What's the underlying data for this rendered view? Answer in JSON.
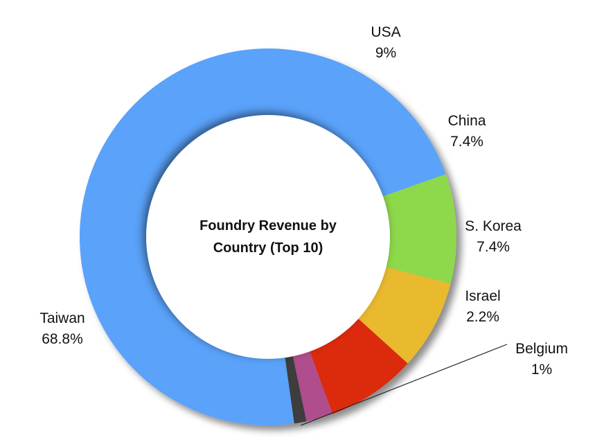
{
  "chart_data": {
    "type": "pie",
    "variant": "donut",
    "title_line1": "Foundry Revenue by",
    "title_line2": "Country (Top 10)",
    "series": [
      {
        "name": "Taiwan",
        "value": 68.8,
        "value_label": "68.8%",
        "color": "#5aa2fa"
      },
      {
        "name": "USA",
        "value": 9,
        "value_label": "9%",
        "color": "#8ed84c"
      },
      {
        "name": "China",
        "value": 7.4,
        "value_label": "7.4%",
        "color": "#e9b92f"
      },
      {
        "name": "S. Korea",
        "value": 7.4,
        "value_label": "7.4%",
        "color": "#dc2b0b"
      },
      {
        "name": "Israel",
        "value": 2.2,
        "value_label": "2.2%",
        "color": "#b04d8d"
      },
      {
        "name": "Belgium",
        "value": 1,
        "value_label": "1%",
        "color": "#3c3c3c"
      }
    ],
    "legend": "none"
  }
}
